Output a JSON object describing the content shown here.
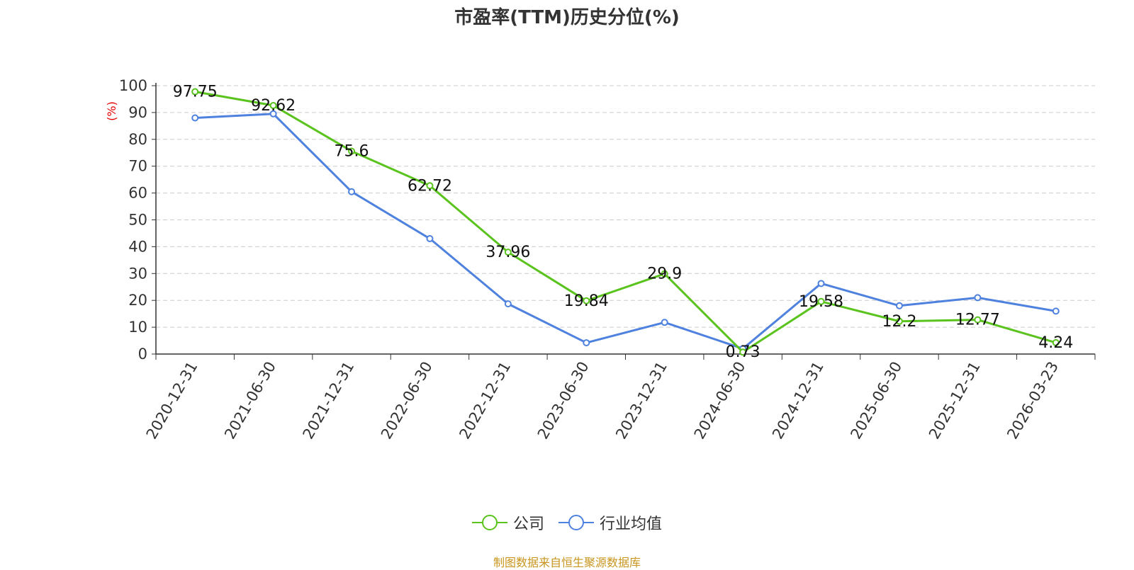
{
  "chart_data": {
    "type": "line",
    "title": "市盈率(TTM)历史分位(%)",
    "ylabel": "(%)",
    "xlabel": "",
    "ylim": [
      0,
      100
    ],
    "yticks": [
      0,
      10,
      20,
      30,
      40,
      50,
      60,
      70,
      80,
      90,
      100
    ],
    "grid": true,
    "legend_position": "bottom",
    "categories": [
      "2020-12-31",
      "2021-06-30",
      "2021-12-31",
      "2022-06-30",
      "2022-12-31",
      "2023-06-30",
      "2023-12-31",
      "2024-06-30",
      "2024-12-31",
      "2025-06-30",
      "2025-12-31",
      "2026-03-23"
    ],
    "series": [
      {
        "name": "公司",
        "color": "#5ac31e",
        "values": [
          97.75,
          92.62,
          75.6,
          62.72,
          37.96,
          19.84,
          29.9,
          0.73,
          19.58,
          12.2,
          12.77,
          4.24
        ],
        "labels": [
          "97.75",
          "92.62",
          "75.6",
          "62.72",
          "37.96",
          "19.84",
          "29.9",
          "0.73",
          "19.58",
          "12.2",
          "12.77",
          "4.24"
        ]
      },
      {
        "name": "行业均值",
        "color": "#4f82de",
        "values": [
          88.0,
          89.5,
          60.5,
          43.0,
          18.7,
          4.2,
          11.8,
          2.0,
          26.3,
          18.0,
          21.0,
          16.0
        ]
      }
    ]
  },
  "footer": {
    "source": "制图数据来自恒生聚源数据库"
  }
}
